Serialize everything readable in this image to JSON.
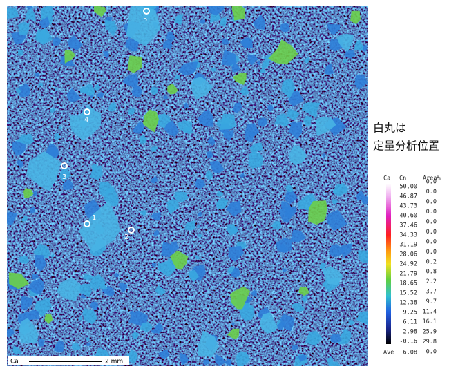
{
  "annotation": [
    "白丸は",
    "定量分析位置"
  ],
  "points": [
    "1",
    "2",
    "3",
    "4",
    "5"
  ],
  "scale_bar": {
    "element": "Ca",
    "length": "2 mm"
  },
  "legend": {
    "header": [
      "Ca",
      "Cn",
      "Area%"
    ],
    "levels": [
      "50.00",
      "46.87",
      "43.73",
      "40.60",
      "37.46",
      "34.33",
      "31.19",
      "28.06",
      "24.92",
      "21.79",
      "18.65",
      "15.52",
      "12.38",
      "9.25",
      "6.11",
      "2.98",
      "-0.16"
    ],
    "area": [
      "0.0",
      "0.0",
      "0.0",
      "0.0",
      "0.0",
      "0.0",
      "0.0",
      "0.0",
      "0.2",
      "0.8",
      "2.2",
      "3.7",
      "9.7",
      "11.4",
      "16.1",
      "25.9",
      "29.8",
      "0.0"
    ],
    "average_label": "Ave",
    "average": "6.08"
  }
}
